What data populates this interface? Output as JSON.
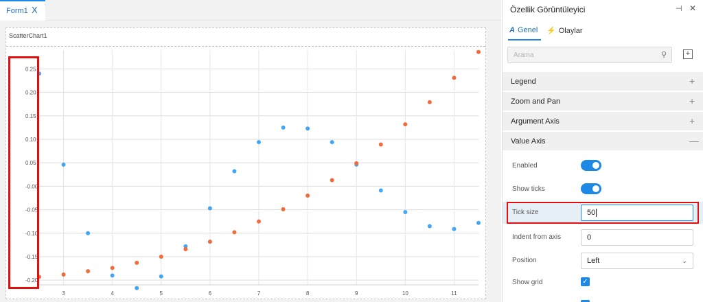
{
  "designer": {
    "tab": {
      "label": "Form1",
      "close": "X"
    },
    "chart_label": "ScatterChart1"
  },
  "chart_data": {
    "type": "scatter",
    "title": "",
    "xlabel": "",
    "ylabel": "",
    "xlim": [
      2.5,
      11.5
    ],
    "ylim": [
      -0.21,
      0.29
    ],
    "x_ticks": [
      3,
      4,
      5,
      6,
      7,
      8,
      9,
      10,
      11
    ],
    "y_ticks": [
      0.25,
      0.2,
      0.15,
      0.1,
      0.05,
      0.0,
      -0.05,
      -0.1,
      -0.15,
      -0.2
    ],
    "y_tick_labels": [
      "0.25",
      "0.20",
      "0.15",
      "0.10",
      "0.05",
      "-0.00",
      "-0.05",
      "-0.10",
      "-0.15",
      "-0.20"
    ],
    "grid": true,
    "series": [
      {
        "color": "#42a5f5",
        "x": [
          2.5,
          3,
          3.5,
          4,
          4.5,
          5,
          5.5,
          6,
          6.5,
          7,
          7.5,
          8,
          8.5,
          9,
          9.5,
          10,
          10.5,
          11,
          11.5
        ],
        "y": [
          0.24,
          0.046,
          -0.1,
          -0.19,
          -0.217,
          -0.192,
          -0.128,
          -0.047,
          0.032,
          0.094,
          0.125,
          0.123,
          0.094,
          0.046,
          -0.009,
          -0.055,
          -0.085,
          -0.091,
          -0.078
        ]
      },
      {
        "color": "#f26b3a",
        "x": [
          2.5,
          3,
          3.5,
          4,
          4.5,
          5,
          5.5,
          6,
          6.5,
          7,
          7.5,
          8,
          8.5,
          9,
          9.5,
          10,
          10.5,
          11,
          11.5
        ],
        "y": [
          -0.193,
          -0.188,
          -0.181,
          -0.174,
          -0.163,
          -0.15,
          -0.134,
          -0.118,
          -0.098,
          -0.075,
          -0.049,
          -0.02,
          0.013,
          0.049,
          0.089,
          0.132,
          0.179,
          0.231,
          0.286
        ]
      }
    ]
  },
  "panel": {
    "title": "Özellik Görüntüleyici",
    "tabs": {
      "general": "Genel",
      "events": "Olaylar"
    },
    "search_placeholder": "Arama",
    "sections": {
      "legend": "Legend",
      "zoom": "Zoom and Pan",
      "argument_axis": "Argument Axis",
      "value_axis": "Value Axis"
    },
    "toggles": {
      "expand": "+",
      "collapse": "—"
    },
    "props": {
      "enabled": {
        "label": "Enabled",
        "value": true
      },
      "show_ticks": {
        "label": "Show ticks",
        "value": true
      },
      "tick_size": {
        "label": "Tick size",
        "value": "50"
      },
      "indent": {
        "label": "Indent from axis",
        "value": "0"
      },
      "position": {
        "label": "Position",
        "value": "Left"
      },
      "show_grid": {
        "label": "Show grid",
        "value": true
      }
    }
  }
}
